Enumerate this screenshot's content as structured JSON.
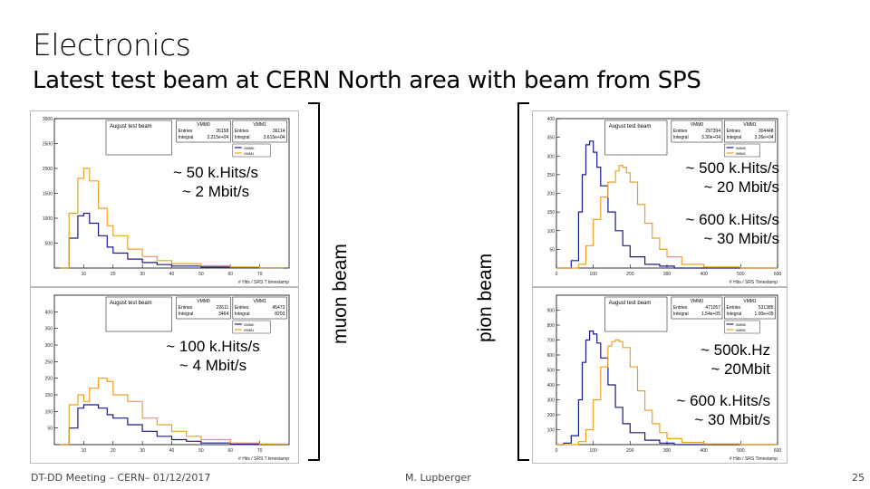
{
  "slide": {
    "title": "Electronics",
    "subtitle": "Latest test beam at CERN North area with beam from SPS",
    "muon_label": "muon beam",
    "pion_label": "pion beam",
    "footer_left": "DT-DD Meeting – CERN– 01/12/2017",
    "footer_center": "M. Lupberger",
    "page_number": "25"
  },
  "annotations": {
    "p1": [
      "~ 50 k.Hits/s",
      "~ 2 Mbit/s"
    ],
    "p2": [
      "~ 100 k.Hits/s",
      "~ 4 Mbit/s"
    ],
    "p3a": [
      "~ 500 k.Hits/s",
      "~ 20 Mbit/s"
    ],
    "p3b": [
      "~ 600 k.Hits/s",
      "~ 30 Mbit/s"
    ],
    "p4a": [
      "~ 500k.Hz",
      "~ 20Mbit"
    ],
    "p4b": [
      "~ 600 k.Hits/s",
      "~ 30 Mbit/s"
    ]
  },
  "colors": {
    "vmm0": "#1a1a8c",
    "vmm1": "#f0a020"
  },
  "chart_data": [
    {
      "type": "line",
      "panel_title": "August test beam",
      "xlabel": "# Hits / SRS T timestamp",
      "xlim": [
        0,
        80
      ],
      "ylim": [
        0,
        3000
      ],
      "xticks": [
        10,
        20,
        30,
        40,
        50,
        60,
        70
      ],
      "yticks": [
        500,
        1000,
        1500,
        2000,
        2500,
        3000
      ],
      "stats": [
        {
          "name": "VMM0",
          "entries": "26158",
          "integral": "2.215e+04"
        },
        {
          "name": "VMM1",
          "entries": "36114",
          "integral": "3.615e+04"
        }
      ],
      "series": [
        {
          "name": "VMM0",
          "x": [
            2,
            5,
            8,
            10,
            12,
            15,
            18,
            20,
            25,
            30,
            35,
            40,
            50,
            60,
            70,
            78
          ],
          "values": [
            0,
            600,
            1050,
            1100,
            900,
            650,
            420,
            300,
            180,
            110,
            70,
            40,
            20,
            10,
            5,
            0
          ]
        },
        {
          "name": "VMM1",
          "x": [
            2,
            5,
            8,
            10,
            12,
            15,
            18,
            20,
            25,
            30,
            35,
            40,
            50,
            60,
            70,
            78
          ],
          "values": [
            0,
            1100,
            1800,
            2000,
            1750,
            1200,
            850,
            650,
            380,
            230,
            150,
            90,
            45,
            20,
            8,
            0
          ]
        }
      ]
    },
    {
      "type": "line",
      "panel_title": "August test beam",
      "xlabel": "# Hits / SRS T timestamp",
      "xlim": [
        0,
        80
      ],
      "ylim": [
        0,
        450
      ],
      "xticks": [
        10,
        20,
        30,
        40,
        50,
        60,
        70
      ],
      "yticks": [
        50,
        100,
        150,
        200,
        250,
        300,
        350,
        400
      ],
      "stats": [
        {
          "name": "VMM0",
          "entries": "22611",
          "integral": "3464"
        },
        {
          "name": "VMM1",
          "entries": "45473",
          "integral": "8203"
        }
      ],
      "series": [
        {
          "name": "VMM0",
          "x": [
            2,
            5,
            8,
            10,
            12,
            15,
            18,
            20,
            25,
            30,
            35,
            40,
            45,
            50,
            60,
            70,
            78
          ],
          "values": [
            0,
            50,
            110,
            120,
            120,
            110,
            90,
            80,
            60,
            40,
            25,
            15,
            10,
            5,
            2,
            1,
            0
          ]
        },
        {
          "name": "VMM1",
          "x": [
            2,
            5,
            8,
            10,
            12,
            15,
            18,
            20,
            25,
            30,
            35,
            40,
            45,
            50,
            60,
            70,
            78
          ],
          "values": [
            0,
            120,
            150,
            130,
            170,
            200,
            190,
            150,
            130,
            80,
            60,
            40,
            25,
            15,
            5,
            2,
            0
          ]
        }
      ]
    },
    {
      "type": "line",
      "panel_title": "August test beam",
      "xlabel": "# Hits / SRS Timestamp",
      "xlim": [
        0,
        600
      ],
      "ylim": [
        0,
        400
      ],
      "xticks": [
        0,
        100,
        200,
        300,
        400,
        500,
        600
      ],
      "yticks": [
        50,
        100,
        150,
        200,
        250,
        300,
        350,
        400
      ],
      "stats": [
        {
          "name": "VMM0",
          "entries": "297394",
          "integral": "3.30e+04"
        },
        {
          "name": "VMM1",
          "entries": "304448",
          "integral": "3.26e+04"
        }
      ],
      "series": [
        {
          "name": "VMM0",
          "x": [
            0,
            20,
            40,
            60,
            70,
            80,
            90,
            100,
            110,
            120,
            140,
            160,
            180,
            200,
            240,
            280,
            320,
            400,
            500,
            600
          ],
          "values": [
            0,
            0,
            20,
            150,
            250,
            330,
            340,
            310,
            270,
            220,
            150,
            100,
            60,
            30,
            10,
            5,
            0,
            0,
            0,
            0
          ]
        },
        {
          "name": "VMM1",
          "x": [
            0,
            40,
            60,
            80,
            100,
            120,
            140,
            160,
            170,
            180,
            190,
            200,
            220,
            240,
            260,
            280,
            300,
            340,
            400,
            500,
            600
          ],
          "values": [
            0,
            0,
            10,
            60,
            130,
            190,
            230,
            260,
            275,
            270,
            255,
            230,
            170,
            120,
            80,
            50,
            30,
            10,
            3,
            0,
            0
          ]
        }
      ]
    },
    {
      "type": "line",
      "panel_title": "August test beam",
      "xlabel": "# Hits / SRS Timestamp",
      "xlim": [
        0,
        600
      ],
      "ylim": [
        0,
        1000
      ],
      "xticks": [
        0,
        100,
        200,
        300,
        400,
        500,
        600
      ],
      "yticks": [
        100,
        200,
        300,
        400,
        500,
        600,
        700,
        800,
        900
      ],
      "stats": [
        {
          "name": "VMM0",
          "entries": "471057",
          "integral": "1.54e+05"
        },
        {
          "name": "VMM1",
          "entries": "531385",
          "integral": "1.00e+05"
        }
      ],
      "series": [
        {
          "name": "VMM0",
          "x": [
            0,
            20,
            40,
            60,
            70,
            80,
            90,
            100,
            110,
            120,
            140,
            160,
            180,
            200,
            240,
            280,
            320,
            400,
            500,
            600
          ],
          "values": [
            0,
            10,
            60,
            300,
            550,
            700,
            760,
            740,
            680,
            580,
            400,
            250,
            140,
            80,
            30,
            10,
            0,
            0,
            0,
            0
          ]
        },
        {
          "name": "VMM1",
          "x": [
            0,
            40,
            60,
            80,
            100,
            120,
            140,
            150,
            160,
            170,
            180,
            200,
            220,
            240,
            260,
            280,
            300,
            340,
            400,
            500,
            600
          ],
          "values": [
            0,
            0,
            20,
            100,
            300,
            520,
            660,
            690,
            700,
            690,
            650,
            520,
            360,
            230,
            140,
            80,
            40,
            15,
            5,
            0,
            0
          ]
        }
      ]
    }
  ]
}
